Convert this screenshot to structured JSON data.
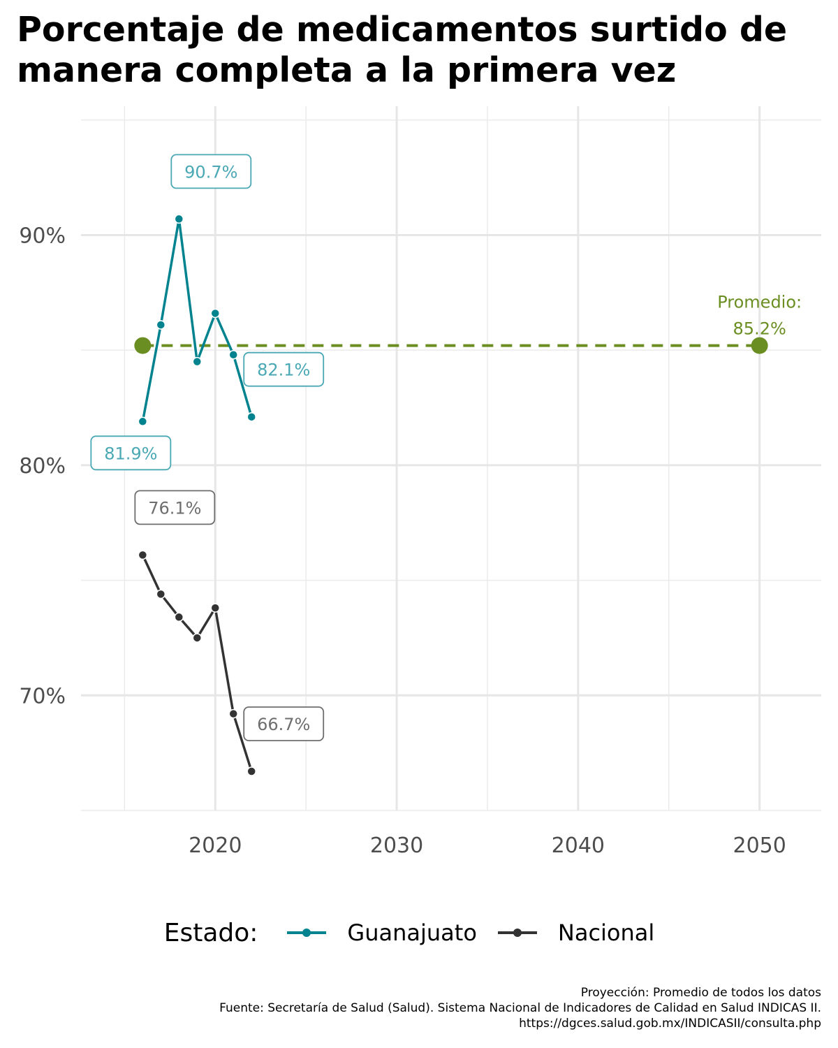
{
  "chart_data": {
    "type": "line",
    "title": "Porcentaje de medicamentos surtido de manera completa a la primera vez",
    "xlabel": "",
    "ylabel": "",
    "xlim": [
      2012.6,
      2053.4
    ],
    "ylim": [
      65.0,
      95.6
    ],
    "x_ticks": [
      2020,
      2030,
      2040,
      2050
    ],
    "x_tick_labels": [
      "2020",
      "2030",
      "2040",
      "2050"
    ],
    "x_minor": [
      2015,
      2025,
      2035,
      2045
    ],
    "y_ticks": [
      70,
      80,
      90
    ],
    "y_tick_labels": [
      "70%",
      "80%",
      "90%"
    ],
    "y_minor": [
      65,
      75,
      85,
      95
    ],
    "grid": true,
    "legend_position": "bottom",
    "legend_title": "Estado:",
    "series": [
      {
        "name": "Guanajuato",
        "color": "#00838f",
        "label_color": "#4aa8b5",
        "x": [
          2016,
          2017,
          2018,
          2019,
          2020,
          2021,
          2022
        ],
        "values": [
          81.9,
          86.1,
          90.7,
          84.5,
          86.6,
          84.8,
          82.1
        ],
        "point_labels": [
          {
            "x": 2016,
            "y": 81.9,
            "text": "81.9%",
            "pos": "below-left"
          },
          {
            "x": 2018,
            "y": 90.7,
            "text": "90.7%",
            "pos": "above-right"
          },
          {
            "x": 2022,
            "y": 82.1,
            "text": "82.1%",
            "pos": "above-right"
          }
        ]
      },
      {
        "name": "Nacional",
        "color": "#333333",
        "label_color": "#6e6e6e",
        "x": [
          2016,
          2017,
          2018,
          2019,
          2020,
          2021,
          2022
        ],
        "values": [
          76.1,
          74.4,
          73.4,
          72.5,
          73.8,
          69.2,
          66.7
        ],
        "point_labels": [
          {
            "x": 2016,
            "y": 76.1,
            "text": "76.1%",
            "pos": "above-right"
          },
          {
            "x": 2022,
            "y": 66.7,
            "text": "66.7%",
            "pos": "above-right"
          }
        ]
      }
    ],
    "projection": {
      "color": "#6b8e23",
      "x": [
        2016,
        2050
      ],
      "values": [
        85.2,
        85.2
      ],
      "label_line1": "Promedio:",
      "label_line2": "85.2%"
    }
  },
  "caption": {
    "line1": "Proyección: Promedio de todos los datos",
    "line2": "Fuente: Secretaría de Salud (Salud). Sistema Nacional de Indicadores de Calidad en Salud INDICAS II.",
    "line3": "https://dgces.salud.gob.mx/INDICASII/consulta.php"
  }
}
